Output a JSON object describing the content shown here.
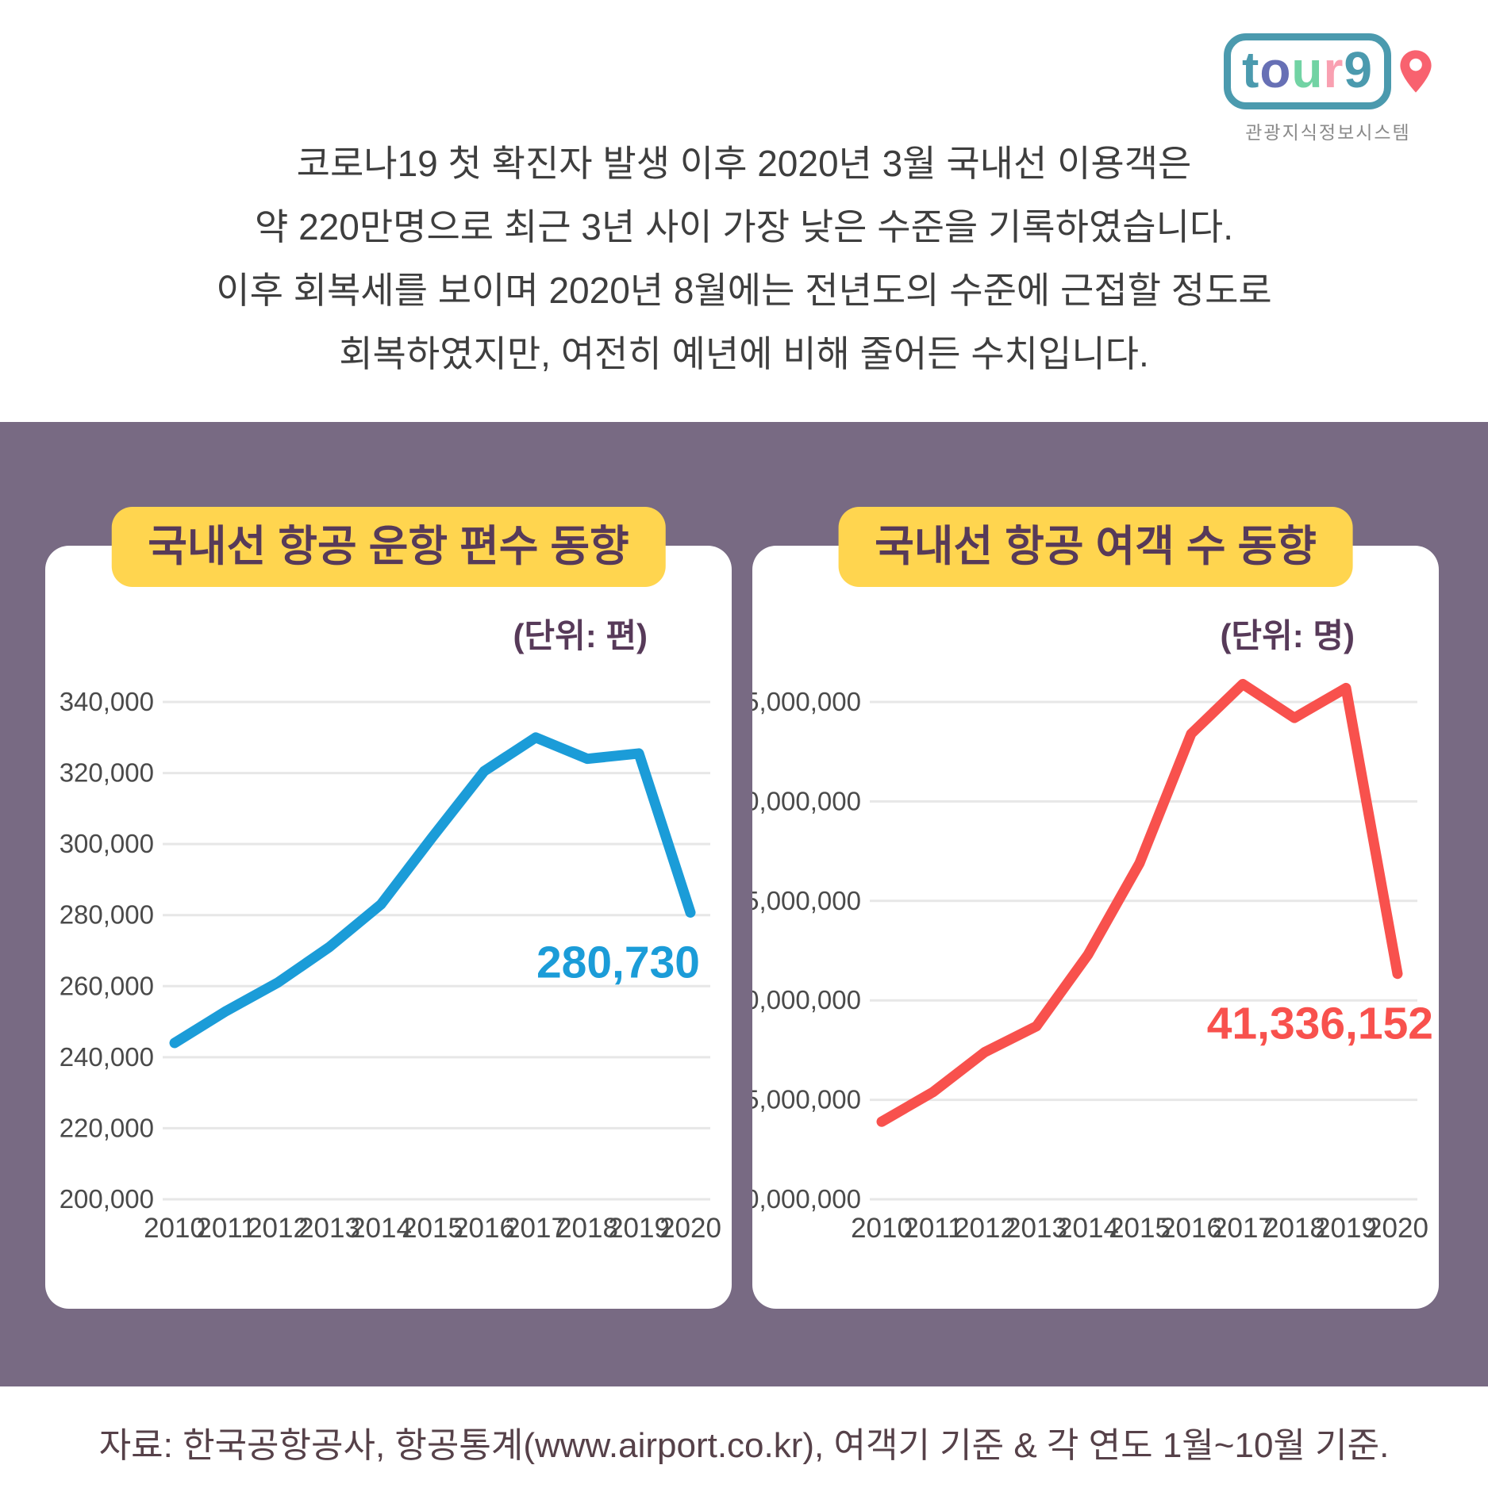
{
  "logo": {
    "letters": [
      {
        "char": "t",
        "color": "#4b9aae"
      },
      {
        "char": "o",
        "color": "#6770b5"
      },
      {
        "char": "u",
        "color": "#72d3a4"
      },
      {
        "char": "r",
        "color": "#f9a0b1"
      },
      {
        "char": "9",
        "color": "#4b9aae"
      }
    ],
    "caption": "관광지식정보시스템",
    "pin_color": "#f8626f"
  },
  "intro": {
    "lines": [
      "코로나19 첫 확진자 발생 이후 2020년 3월 국내선 이용객은",
      "약 220만명으로 최근 3년 사이 가장 낮은 수준을 기록하였습니다.",
      "이후 회복세를 보이며 2020년 8월에는 전년도의 수준에 근접할 정도로",
      "회복하였지만, 여전히 예년에 비해 줄어든 수치입니다."
    ]
  },
  "chart_data": [
    {
      "type": "line",
      "title": "국내선 항공 운항 편수 동향",
      "unit_label": "(단위: 편)",
      "xlabel": "",
      "ylabel": "",
      "categories": [
        "2010",
        "2011",
        "2012",
        "2013",
        "2014",
        "2015",
        "2016",
        "2017",
        "2018",
        "2019",
        "2020"
      ],
      "values": [
        244000,
        253000,
        261000,
        271000,
        283000,
        302000,
        320500,
        330000,
        324000,
        325500,
        280730
      ],
      "ylim": [
        200000,
        340000
      ],
      "ytick_step": 20000,
      "grid": true,
      "legend": "none",
      "line_color": "#1b9cd8",
      "last_value_label": "280,730"
    },
    {
      "type": "line",
      "title": "국내선 항공 여객 수 동향",
      "unit_label": "(단위: 명)",
      "xlabel": "",
      "ylabel": "",
      "categories": [
        "2010",
        "2011",
        "2012",
        "2013",
        "2014",
        "2015",
        "2016",
        "2017",
        "2018",
        "2019",
        "2020"
      ],
      "values": [
        33900000,
        35400000,
        37400000,
        38700000,
        42300000,
        46900000,
        53400000,
        55900000,
        54200000,
        55700000,
        41336152
      ],
      "ylim": [
        30000000,
        55000000
      ],
      "ytick_step": 5000000,
      "grid": true,
      "legend": "none",
      "line_color": "#f8514d",
      "last_value_label": "41,336,152"
    }
  ],
  "source": "자료: 한국공항공사, 항공통계(www.airport.co.kr), 여객기 기준 & 각 연도 1월~10월 기준.",
  "colors": {
    "band": "#786a83",
    "badge_bg": "#ffd54f",
    "badge_text": "#573a59",
    "axis_text": "#4a4a4a",
    "gridline": "#e7e7e7",
    "blue": "#1b9cd8",
    "red": "#f8514d",
    "intro_text": "#3e3e3e",
    "source_text": "#564149"
  }
}
